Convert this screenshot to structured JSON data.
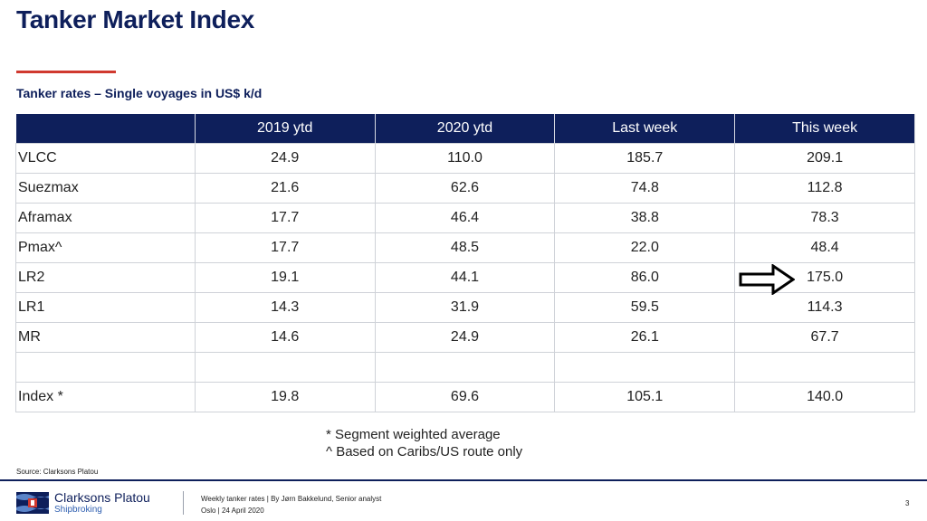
{
  "title": "Tanker Market Index",
  "subtitle": "Tanker rates – Single voyages in US$ k/d",
  "table": {
    "headers": [
      "",
      "2019 ytd",
      "2020 ytd",
      "Last week",
      "This week"
    ],
    "rows": [
      {
        "label": "VLCC",
        "values": [
          "24.9",
          "110.0",
          "185.7",
          "209.1"
        ]
      },
      {
        "label": "Suezmax",
        "values": [
          "21.6",
          "62.6",
          "74.8",
          "112.8"
        ]
      },
      {
        "label": "Aframax",
        "values": [
          "17.7",
          "46.4",
          "38.8",
          "78.3"
        ]
      },
      {
        "label": "Pmax^",
        "values": [
          "17.7",
          "48.5",
          "22.0",
          "48.4"
        ]
      },
      {
        "label": "LR2",
        "values": [
          "19.1",
          "44.1",
          "86.0",
          "175.0"
        ]
      },
      {
        "label": "LR1",
        "values": [
          "14.3",
          "31.9",
          "59.5",
          "114.3"
        ]
      },
      {
        "label": "MR",
        "values": [
          "14.6",
          "24.9",
          "26.1",
          "67.7"
        ]
      },
      {
        "label": "",
        "values": [
          "",
          "",
          "",
          ""
        ]
      },
      {
        "label": "Index *",
        "values": [
          "19.8",
          "69.6",
          "105.1",
          "140.0"
        ]
      }
    ]
  },
  "notes": [
    "* Segment weighted average",
    "^ Based on Caribs/US route only"
  ],
  "source": "Source: Clarksons Platou",
  "footer": {
    "company": "Clarksons Platou",
    "division": "Shipbroking",
    "line1": "Weekly tanker rates | By Jørn Bakkelund, Senior analyst",
    "line2": "Oslo | 24 April 2020",
    "page": "3"
  },
  "colors": {
    "navy": "#0e1f5b",
    "accent_red": "#d0392f"
  },
  "icons": {
    "arrow": "right-arrow-icon",
    "logo": "clarksons-logo-icon"
  }
}
